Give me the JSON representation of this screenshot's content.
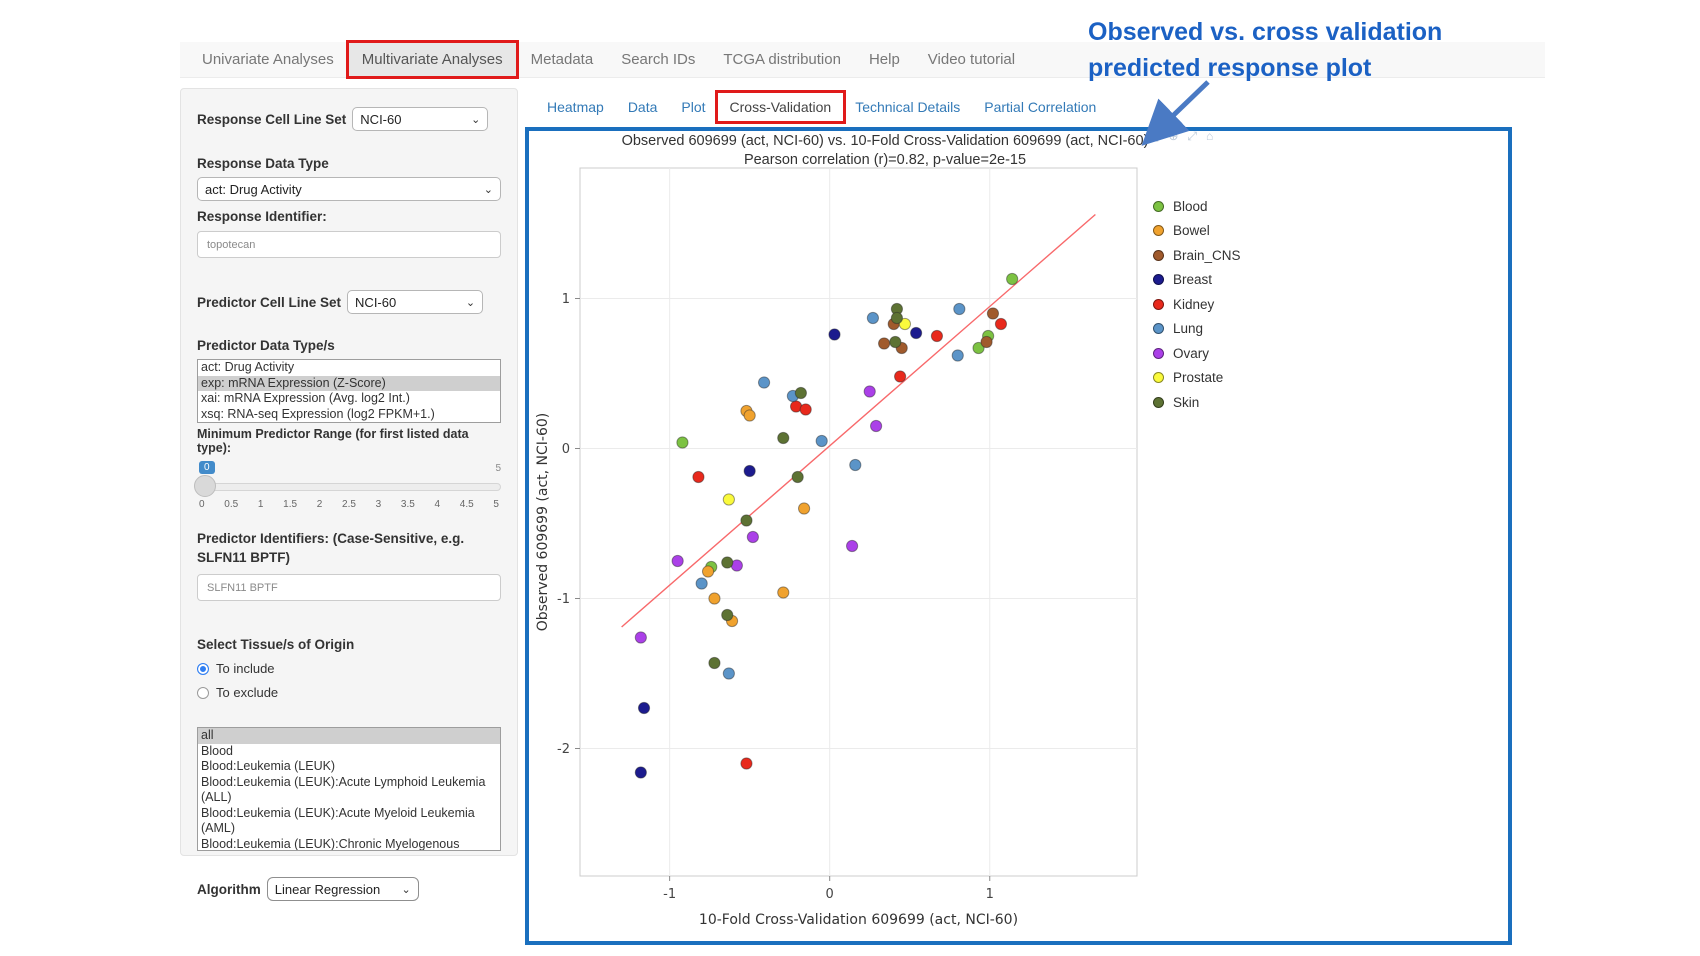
{
  "nav": {
    "tabs": [
      {
        "label": "Univariate Analyses"
      },
      {
        "label": "Multivariate Analyses",
        "active": true,
        "red_box": true
      },
      {
        "label": "Metadata"
      },
      {
        "label": "Search IDs"
      },
      {
        "label": "TCGA distribution"
      },
      {
        "label": "Help"
      },
      {
        "label": "Video tutorial"
      }
    ]
  },
  "annotation": {
    "line1": "Observed vs. cross validation",
    "line2": "predicted response plot",
    "color": "#1b61c4"
  },
  "sidebar": {
    "response_cell_line_set": {
      "label": "Response Cell Line Set",
      "value": "NCI-60"
    },
    "response_data_type": {
      "label": "Response Data Type",
      "value": "act: Drug Activity"
    },
    "response_identifier": {
      "label": "Response Identifier:",
      "value": "topotecan"
    },
    "predictor_cell_line_set": {
      "label": "Predictor Cell Line Set",
      "value": "NCI-60"
    },
    "predictor_data_types": {
      "label": "Predictor Data Type/s",
      "options": [
        "act: Drug Activity",
        "exp: mRNA Expression (Z-Score)",
        "xai: mRNA Expression (Avg. log2 Int.)",
        "xsq: RNA-seq Expression (log2 FPKM+1.)"
      ],
      "selected_index": 1
    },
    "min_predictor_range": {
      "label": "Minimum Predictor Range (for first listed data type):",
      "value": "0",
      "max_label": "5",
      "ticks": [
        "0",
        "0.5",
        "1",
        "1.5",
        "2",
        "2.5",
        "3",
        "3.5",
        "4",
        "4.5",
        "5"
      ]
    },
    "predictor_identifiers": {
      "label": "Predictor Identifiers: (Case-Sensitive, e.g. SLFN11 BPTF)",
      "value": "SLFN11 BPTF"
    },
    "tissue_origin": {
      "label": "Select Tissue/s of Origin",
      "options": [
        {
          "label": "To include",
          "selected": true
        },
        {
          "label": "To exclude",
          "selected": false
        }
      ]
    },
    "tissue_list": {
      "options": [
        "all",
        "Blood",
        "Blood:Leukemia (LEUK)",
        "Blood:Leukemia (LEUK):Acute Lymphoid Leukemia (ALL)",
        "Blood:Leukemia (LEUK):Acute Myeloid Leukemia (AML)",
        "Blood:Leukemia (LEUK):Chronic Myelogenous Leukemia (CML)"
      ],
      "selected_index": 0
    },
    "algorithm": {
      "label": "Algorithm",
      "value": "Linear Regression"
    }
  },
  "plot_tabs": [
    {
      "label": "Heatmap"
    },
    {
      "label": "Data"
    },
    {
      "label": "Plot"
    },
    {
      "label": "Cross-Validation",
      "active": true,
      "red_box": true
    },
    {
      "label": "Technical Details"
    },
    {
      "label": "Partial Correlation"
    }
  ],
  "modebar": [
    {
      "name": "camera-icon",
      "glyph": "▣"
    },
    {
      "name": "zoom-in-icon",
      "glyph": "⊕"
    },
    {
      "name": "pan-icon",
      "glyph": "⤢"
    },
    {
      "name": "reset-axes-icon",
      "glyph": "⌂"
    }
  ],
  "chart_data": {
    "type": "scatter",
    "title": "Observed 609699 (act, NCI-60) vs. 10-Fold Cross-Validation 609699 (act, NCI-60)",
    "subtitle": "Pearson correlation (r)=0.82, p-value=2e-15",
    "xlabel": "10-Fold Cross-Validation 609699 (act, NCI-60)",
    "ylabel": "Observed 609699 (act, NCI-60)",
    "x_ticks": [
      -1,
      0,
      1
    ],
    "y_ticks": [
      1,
      0,
      -1,
      -2
    ],
    "x_range": [
      -1.56,
      1.92
    ],
    "y_range": [
      -2.85,
      1.87
    ],
    "grid": true,
    "legend_position": "right",
    "trend_line": {
      "x": [
        -1.3,
        1.66
      ],
      "y": [
        -1.19,
        1.56
      ],
      "color": "#f8696b"
    },
    "series": [
      {
        "name": "Blood",
        "color": "#7cc242",
        "points": [
          [
            -0.92,
            0.04
          ],
          [
            1.14,
            1.13
          ],
          [
            0.93,
            0.67
          ],
          [
            0.99,
            0.75
          ],
          [
            -0.74,
            -0.79
          ]
        ]
      },
      {
        "name": "Bowel",
        "color": "#f0a22e",
        "points": [
          [
            -0.52,
            0.25
          ],
          [
            -0.5,
            0.22
          ],
          [
            -0.16,
            -0.4
          ],
          [
            -0.76,
            -0.82
          ],
          [
            -0.72,
            -1.0
          ],
          [
            -0.29,
            -0.96
          ],
          [
            -0.61,
            -1.15
          ]
        ]
      },
      {
        "name": "Brain_CNS",
        "color": "#a05a2c",
        "points": [
          [
            1.02,
            0.9
          ],
          [
            0.98,
            0.71
          ],
          [
            0.4,
            0.83
          ],
          [
            0.34,
            0.7
          ],
          [
            0.45,
            0.67
          ]
        ]
      },
      {
        "name": "Breast",
        "color": "#1c1b8e",
        "points": [
          [
            0.03,
            0.76
          ],
          [
            0.54,
            0.77
          ],
          [
            -0.5,
            -0.15
          ],
          [
            -1.16,
            -1.73
          ],
          [
            -1.18,
            -2.16
          ]
        ]
      },
      {
        "name": "Kidney",
        "color": "#e8291c",
        "points": [
          [
            1.07,
            0.83
          ],
          [
            0.67,
            0.75
          ],
          [
            0.44,
            0.48
          ],
          [
            -0.21,
            0.28
          ],
          [
            -0.15,
            0.26
          ],
          [
            -0.82,
            -0.19
          ],
          [
            -0.52,
            -2.1
          ]
        ]
      },
      {
        "name": "Lung",
        "color": "#5b94c8",
        "points": [
          [
            0.81,
            0.93
          ],
          [
            0.27,
            0.87
          ],
          [
            0.8,
            0.62
          ],
          [
            -0.41,
            0.44
          ],
          [
            -0.23,
            0.35
          ],
          [
            -0.05,
            0.05
          ],
          [
            0.16,
            -0.11
          ],
          [
            -0.8,
            -0.9
          ],
          [
            -0.63,
            -1.5
          ]
        ]
      },
      {
        "name": "Ovary",
        "color": "#ab40e8",
        "points": [
          [
            0.25,
            0.38
          ],
          [
            0.29,
            0.15
          ],
          [
            -0.48,
            -0.59
          ],
          [
            0.14,
            -0.65
          ],
          [
            -0.95,
            -0.75
          ],
          [
            -0.58,
            -0.78
          ],
          [
            -1.18,
            -1.26
          ]
        ]
      },
      {
        "name": "Prostate",
        "color": "#fafa3c",
        "points": [
          [
            0.47,
            0.83
          ],
          [
            -0.63,
            -0.34
          ]
        ]
      },
      {
        "name": "Skin",
        "color": "#5d7233",
        "points": [
          [
            0.42,
            0.93
          ],
          [
            0.42,
            0.87
          ],
          [
            0.41,
            0.71
          ],
          [
            -0.18,
            0.37
          ],
          [
            -0.29,
            0.07
          ],
          [
            -0.2,
            -0.19
          ],
          [
            -0.52,
            -0.48
          ],
          [
            -0.64,
            -0.76
          ],
          [
            -0.64,
            -1.11
          ],
          [
            -0.72,
            -1.43
          ]
        ]
      }
    ]
  }
}
